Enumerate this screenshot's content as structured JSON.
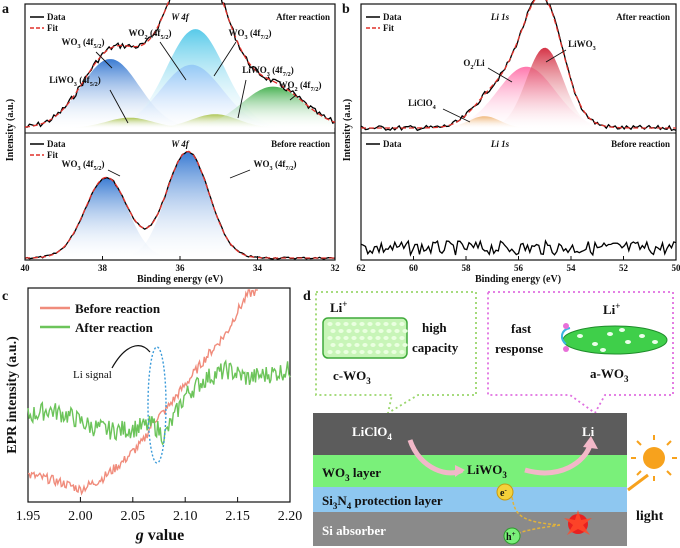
{
  "panel_labels": {
    "a": "a",
    "b": "b",
    "c": "c",
    "d": "d"
  },
  "chart_data": [
    {
      "panel": "a",
      "type": "line",
      "title": "W 4f",
      "xlabel": "Binding energy (eV)",
      "ylabel": "Intensity (a.u.)",
      "xlim": [
        40,
        32
      ],
      "xticks": [
        "40",
        "38",
        "36",
        "34",
        "32"
      ],
      "legend": [
        "Data",
        "Fit"
      ],
      "subplots": [
        {
          "condition": "After reaction",
          "title": "W 4f",
          "peaks": [
            {
              "label_main": "WO",
              "sub": "3",
              "state": "(4f",
              "orbital": "5/2",
              "close": ")",
              "center": 37.8,
              "height": 0.6,
              "width": 0.75,
              "color": "#2f74d0"
            },
            {
              "label_main": "WO",
              "sub": "2",
              "state": "(4f",
              "orbital": "5/2",
              "close": ")",
              "center": 35.7,
              "height": 0.55,
              "width": 0.8,
              "color": "#9aa4ff"
            },
            {
              "label_main": "WO",
              "sub": "3",
              "state": "(4f",
              "orbital": "7/2",
              "close": ")",
              "center": 35.6,
              "height": 0.86,
              "width": 0.75,
              "color": "#4fc7e8"
            },
            {
              "label_main": "LiWO",
              "sub": "3",
              "state": "(4f",
              "orbital": "5/2",
              "close": ")",
              "center": 37.3,
              "height": 0.09,
              "width": 0.6,
              "color": "#a9c34a"
            },
            {
              "label_main": "LiWO",
              "sub": "3",
              "state": "(4f",
              "orbital": "7/2",
              "close": ")",
              "center": 35.1,
              "height": 0.12,
              "width": 0.6,
              "color": "#a9c34a"
            },
            {
              "label_main": "WO",
              "sub": "2",
              "state": "(4f",
              "orbital": "7/2",
              "close": ")",
              "center": 33.6,
              "height": 0.36,
              "width": 0.8,
              "color": "#3fae4a"
            }
          ]
        },
        {
          "condition": "Before reaction",
          "title": "W 4f",
          "peaks": [
            {
              "label_main": "WO",
              "sub": "3",
              "state": "(4f",
              "orbital": "5/2",
              "close": ")",
              "center": 37.9,
              "height": 0.72,
              "width": 0.55,
              "color": "#2f74d0"
            },
            {
              "label_main": "WO",
              "sub": "3",
              "state": "(4f",
              "orbital": "7/2",
              "close": ")",
              "center": 35.8,
              "height": 0.95,
              "width": 0.55,
              "color": "#2f74d0"
            }
          ]
        }
      ]
    },
    {
      "panel": "b",
      "type": "line",
      "title": "Li 1s",
      "xlabel": "Binding energy (eV)",
      "ylabel": "Intensity (a.u.)",
      "xlim": [
        62,
        50
      ],
      "xticks": [
        "62",
        "60",
        "58",
        "56",
        "54",
        "52",
        "50"
      ],
      "legend": [
        "Data",
        "Fit"
      ],
      "subplots": [
        {
          "condition": "After reaction",
          "title": "Li 1s",
          "peaks": [
            {
              "label_main": "LiClO",
              "sub": "4",
              "center": 57.3,
              "height": 0.1,
              "width": 0.6,
              "color": "#e8a040"
            },
            {
              "label_main": "O",
              "sub": "2",
              "suffix": "/Li",
              "center": 55.7,
              "height": 0.52,
              "width": 1.1,
              "color": "#ff6fa8"
            },
            {
              "label_main": "LiWO",
              "sub": "3",
              "center": 55.0,
              "height": 0.68,
              "width": 0.7,
              "color": "#d2283c"
            }
          ]
        },
        {
          "condition": "Before reaction",
          "title": "Li 1s",
          "peaks": []
        }
      ]
    },
    {
      "panel": "c",
      "type": "line",
      "title": "",
      "xlabel": "g value",
      "ylabel": "EPR intensity (a.u.)",
      "xlim": [
        1.95,
        2.2
      ],
      "xticks": [
        "1.95",
        "2.00",
        "2.05",
        "2.10",
        "2.15",
        "2.20"
      ],
      "annotation": "Li signal",
      "series": [
        {
          "name": "Before reaction",
          "color": "#f08c7c",
          "x": [
            1.95,
            1.97,
            1.99,
            2.0,
            2.02,
            2.04,
            2.06,
            2.07,
            2.08,
            2.1,
            2.12,
            2.14,
            2.15,
            2.16,
            2.17
          ],
          "y": [
            0.12,
            0.1,
            0.07,
            0.05,
            0.1,
            0.18,
            0.28,
            0.38,
            0.42,
            0.55,
            0.68,
            0.8,
            0.9,
            0.98,
            1.0
          ]
        },
        {
          "name": "After reaction",
          "color": "#6cc45a",
          "x": [
            1.95,
            1.97,
            1.99,
            2.01,
            2.03,
            2.05,
            2.07,
            2.08,
            2.1,
            2.12,
            2.14,
            2.16,
            2.18,
            2.2
          ],
          "y": [
            0.4,
            0.43,
            0.4,
            0.35,
            0.33,
            0.34,
            0.36,
            0.3,
            0.5,
            0.58,
            0.62,
            0.58,
            0.6,
            0.62
          ]
        }
      ]
    }
  ],
  "diagram": {
    "left_box": {
      "title": "Li",
      "sup": "+",
      "text1": "high",
      "text2": "capacity",
      "label_a": "c-WO",
      "label_sub": "3"
    },
    "right_box": {
      "title": "Li",
      "sup": "+",
      "text1": "fast",
      "text2": "response",
      "label_a": "a-WO",
      "label_sub": "3"
    },
    "device": {
      "top_left": "LiClO",
      "top_left_sub": "4",
      "top_right": "Li",
      "middle_product": "LiWO",
      "middle_product_sub": "3",
      "layer1": "WO",
      "layer1_sub": "3",
      "layer1_suffix": " layer",
      "layer2_a": "Si",
      "layer2_sub1": "3",
      "layer2_b": "N",
      "layer2_sub2": "4",
      "layer2_c": " protection layer",
      "layer3": "Si absorber",
      "electron": "e",
      "electron_sup": "-",
      "hole": "h",
      "hole_sup": "+",
      "light": "light"
    },
    "colors": {
      "green": "#7af07a",
      "blue": "#8ec7f0",
      "gray": "#8a8a8a",
      "dark": "#5a5a5a",
      "pink": "#e06fe0",
      "lime": "#9ad66c"
    }
  }
}
